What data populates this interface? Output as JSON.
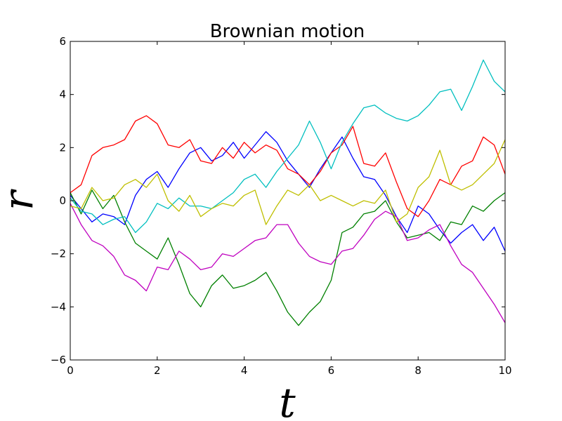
{
  "chart_data": {
    "type": "line",
    "title": "Brownian motion",
    "xlabel": "t",
    "ylabel": "r",
    "xlim": [
      0,
      10
    ],
    "ylim": [
      -6,
      6
    ],
    "x_ticks": [
      "0",
      "2",
      "4",
      "6",
      "8",
      "10"
    ],
    "y_ticks": [
      "6",
      "4",
      "2",
      "0",
      "−2",
      "−4",
      "−6"
    ],
    "grid": false,
    "x": [
      0,
      0.25,
      0.5,
      0.75,
      1,
      1.25,
      1.5,
      1.75,
      2,
      2.25,
      2.5,
      2.75,
      3,
      3.25,
      3.5,
      3.75,
      4,
      4.25,
      4.5,
      4.75,
      5,
      5.25,
      5.5,
      5.75,
      6,
      6.25,
      6.5,
      6.75,
      7,
      7.25,
      7.5,
      7.75,
      8,
      8.25,
      8.5,
      8.75,
      9,
      9.25,
      9.5,
      9.75,
      10
    ],
    "series": [
      {
        "color": "#0000ff",
        "values": [
          0.2,
          -0.3,
          -0.8,
          -0.5,
          -0.6,
          -0.9,
          0.2,
          0.8,
          1.1,
          0.5,
          1.2,
          1.8,
          2.0,
          1.5,
          1.7,
          2.2,
          1.6,
          2.1,
          2.6,
          2.2,
          1.5,
          1.0,
          0.5,
          1.2,
          1.8,
          2.4,
          1.6,
          0.9,
          0.8,
          0.2,
          -0.6,
          -1.2,
          -0.2,
          -0.5,
          -1.1,
          -1.6,
          -1.2,
          -0.9,
          -1.5,
          -1.0,
          -1.9
        ]
      },
      {
        "color": "#008000",
        "values": [
          0.3,
          -0.5,
          0.4,
          -0.3,
          0.2,
          -0.8,
          -1.6,
          -1.9,
          -2.2,
          -1.4,
          -2.4,
          -3.5,
          -4.0,
          -3.2,
          -2.8,
          -3.3,
          -3.2,
          -3.0,
          -2.7,
          -3.4,
          -4.2,
          -4.7,
          -4.2,
          -3.8,
          -3.0,
          -1.2,
          -1.0,
          -0.5,
          -0.4,
          0.0,
          -0.8,
          -1.4,
          -1.3,
          -1.2,
          -1.5,
          -0.8,
          -0.9,
          -0.2,
          -0.4,
          0.0,
          0.3
        ]
      },
      {
        "color": "#ff0000",
        "values": [
          0.3,
          0.6,
          1.7,
          2.0,
          2.1,
          2.3,
          3.0,
          3.2,
          2.9,
          2.1,
          2.0,
          2.3,
          1.5,
          1.4,
          2.0,
          1.6,
          2.2,
          1.8,
          2.1,
          1.9,
          1.2,
          1.0,
          0.6,
          1.1,
          1.8,
          2.1,
          2.8,
          1.4,
          1.3,
          1.8,
          0.7,
          -0.3,
          -0.6,
          0.0,
          0.8,
          0.6,
          1.3,
          1.5,
          2.4,
          2.1,
          1.0
        ]
      },
      {
        "color": "#00bfbf",
        "values": [
          0.1,
          -0.4,
          -0.5,
          -0.9,
          -0.7,
          -0.6,
          -1.2,
          -0.8,
          -0.1,
          -0.3,
          0.1,
          -0.2,
          -0.2,
          -0.3,
          0.0,
          0.3,
          0.8,
          1.0,
          0.5,
          1.1,
          1.6,
          2.1,
          3.0,
          2.2,
          1.2,
          2.2,
          2.9,
          3.5,
          3.6,
          3.3,
          3.1,
          3.0,
          3.2,
          3.6,
          4.1,
          4.2,
          3.4,
          4.3,
          5.3,
          4.5,
          4.1
        ]
      },
      {
        "color": "#bf00bf",
        "values": [
          -0.1,
          -0.9,
          -1.5,
          -1.7,
          -2.1,
          -2.8,
          -3.0,
          -3.4,
          -2.5,
          -2.6,
          -1.9,
          -2.2,
          -2.6,
          -2.5,
          -2.0,
          -2.1,
          -1.8,
          -1.5,
          -1.4,
          -0.9,
          -0.9,
          -1.6,
          -2.1,
          -2.3,
          -2.4,
          -1.9,
          -1.8,
          -1.3,
          -0.7,
          -0.4,
          -0.6,
          -1.5,
          -1.4,
          -1.1,
          -0.9,
          -1.7,
          -2.4,
          -2.7,
          -3.3,
          -3.9,
          -4.6
        ]
      },
      {
        "color": "#bfbf00",
        "values": [
          -0.2,
          -0.3,
          0.5,
          0.0,
          0.1,
          0.6,
          0.8,
          0.5,
          1.0,
          0.0,
          -0.4,
          0.2,
          -0.6,
          -0.3,
          -0.1,
          -0.2,
          0.2,
          0.4,
          -0.9,
          -0.2,
          0.4,
          0.2,
          0.6,
          0.0,
          0.2,
          0.0,
          -0.2,
          0.0,
          -0.1,
          0.4,
          -0.8,
          -0.5,
          0.5,
          0.9,
          1.9,
          0.6,
          0.4,
          0.6,
          1.0,
          1.4,
          2.3
        ]
      }
    ]
  }
}
